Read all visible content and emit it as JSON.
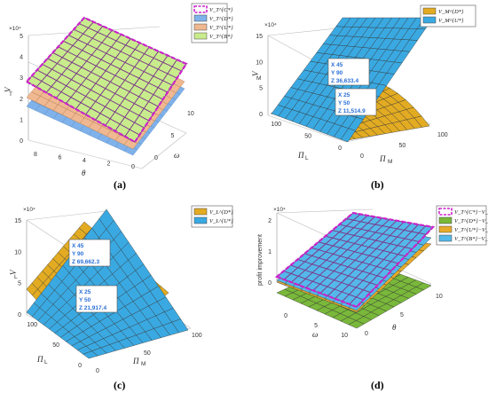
{
  "chart_data": [
    {
      "type": "surface",
      "panel_label": "(a)",
      "exponent_label": "×10⁴",
      "zlabel": "V_T",
      "xlabel": "θ",
      "ylabel": "ω",
      "ztick_labels": [
        "0",
        "1",
        "2",
        "3",
        "4",
        "5"
      ],
      "xtick_labels": [
        "0",
        "2",
        "4",
        "6",
        "8"
      ],
      "ytick_labels": [
        "0",
        "5",
        "10"
      ],
      "legend": [
        "V_T^{C*}",
        "V_T^{D*}",
        "V_T^{U*}",
        "V_T^{B*}"
      ],
      "colors": {
        "magenta": "#cc22cc",
        "blue": "#7fb2ea",
        "orange": "#f0b890",
        "green": "#c8ec8c"
      }
    },
    {
      "type": "surface",
      "panel_label": "(b)",
      "exponent_label": "×10⁴",
      "zlabel": "V_M",
      "xlabel": "Π_L",
      "ylabel": "Π_M",
      "ztick_labels": [
        "0",
        "5",
        "10",
        "15"
      ],
      "xtick_labels": [
        "0",
        "50",
        "100"
      ],
      "ytick_labels": [
        "0",
        "50",
        "100"
      ],
      "legend": [
        "V_M^{D*}",
        "V_M^{U*}"
      ],
      "colors": {
        "orange": "#e2ab22",
        "blue": "#3aa9e2"
      },
      "datatips": [
        {
          "x": "X 45",
          "y": "Y 90",
          "z": "Z 36,633.4"
        },
        {
          "x": "X 25",
          "y": "Y 50",
          "z": "Z 11,514.9"
        }
      ]
    },
    {
      "type": "surface",
      "panel_label": "(c)",
      "exponent_label": "×10⁴",
      "zlabel": "V_L",
      "xlabel": "Π_L",
      "ylabel": "Π_M",
      "ztick_labels": [
        "0",
        "5",
        "10",
        "15"
      ],
      "xtick_labels": [
        "0",
        "50",
        "100"
      ],
      "ytick_labels": [
        "0",
        "50",
        "100"
      ],
      "legend": [
        "V_L^{D*}",
        "V_L^{U*}"
      ],
      "colors": {
        "orange": "#e2ab22",
        "blue": "#3aa9e2"
      },
      "datatips": [
        {
          "x": "X 45",
          "y": "Y 90",
          "z": "Z 69,662.3"
        },
        {
          "x": "X 25",
          "y": "Y 50",
          "z": "Z 21,917.4"
        }
      ]
    },
    {
      "type": "surface",
      "panel_label": "(d)",
      "exponent_label": "×10⁴",
      "zlabel": "profit improvement",
      "xlabel": "ω",
      "ylabel": "θ",
      "ztick_labels": [
        "0",
        "1",
        "2"
      ],
      "xtick_labels": [
        "0",
        "5",
        "10"
      ],
      "ytick_labels": [
        "0",
        "5",
        "10"
      ],
      "legend": [
        "V_T^{C*}−V_T^{D*}",
        "V_T^{D*}−V_T^{D*}",
        "V_T^{U*}−V_T^{D*}",
        "V_T^{B*}−V_T^{D*}"
      ],
      "colors": {
        "magenta": "#cc22cc",
        "green": "#79b83a",
        "orange": "#e6ab2a",
        "blue": "#54b8ea"
      }
    }
  ]
}
